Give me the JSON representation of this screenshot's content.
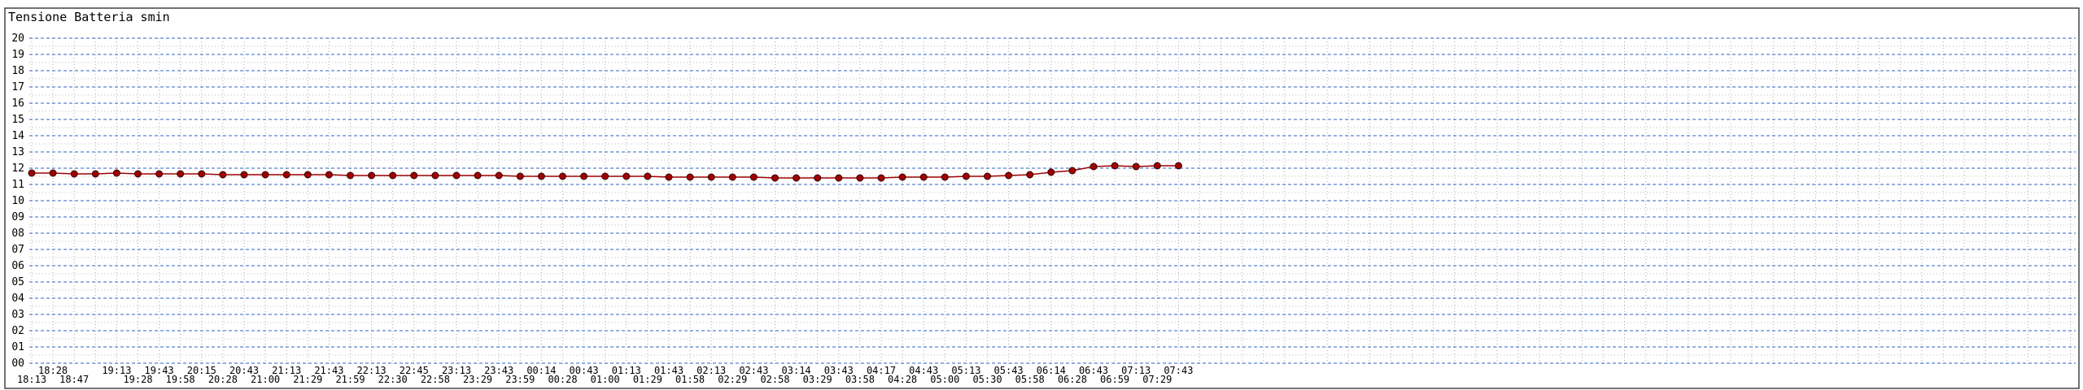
{
  "chart_data": {
    "type": "line",
    "title": "Tensione Batteria smin",
    "categories": [
      "18:13",
      "18:28",
      "18:47",
      null,
      "19:13",
      "19:28",
      "19:43",
      "19:58",
      "20:15",
      "20:28",
      "20:43",
      "21:00",
      "21:13",
      "21:29",
      "21:43",
      "21:59",
      "22:13",
      "22:30",
      "22:45",
      "22:58",
      "23:13",
      "23:29",
      "23:43",
      "23:59",
      "00:14",
      "00:28",
      "00:43",
      "01:00",
      "01:13",
      "01:29",
      "01:43",
      "01:58",
      "02:13",
      "02:29",
      "02:43",
      "02:58",
      "03:14",
      "03:29",
      "03:43",
      "03:58",
      "04:17",
      "04:28",
      "04:43",
      "05:00",
      "05:13",
      "05:30",
      "05:43",
      "05:58",
      "06:14",
      "06:28",
      "06:43",
      "06:59",
      "07:13",
      "07:29",
      "07:43"
    ],
    "values": [
      11.7,
      11.7,
      11.65,
      11.65,
      11.7,
      11.65,
      11.65,
      11.65,
      11.65,
      11.6,
      11.6,
      11.6,
      11.6,
      11.6,
      11.6,
      11.55,
      11.55,
      11.55,
      11.55,
      11.55,
      11.55,
      11.55,
      11.55,
      11.5,
      11.5,
      11.5,
      11.5,
      11.5,
      11.5,
      11.5,
      11.45,
      11.45,
      11.45,
      11.45,
      11.45,
      11.4,
      11.4,
      11.4,
      11.4,
      11.4,
      11.4,
      11.45,
      11.45,
      11.45,
      11.5,
      11.5,
      11.55,
      11.6,
      11.75,
      11.85,
      12.1,
      12.15,
      12.1,
      12.15,
      12.15
    ],
    "color": "#a00000",
    "ylim": [
      0,
      20
    ],
    "yticks": [
      {
        "value": 0,
        "label": "00"
      },
      {
        "value": 1,
        "label": "01"
      },
      {
        "value": 2,
        "label": "02"
      },
      {
        "value": 3,
        "label": "03"
      },
      {
        "value": 4,
        "label": "04"
      },
      {
        "value": 5,
        "label": "05"
      },
      {
        "value": 6,
        "label": "06"
      },
      {
        "value": 7,
        "label": "07"
      },
      {
        "value": 8,
        "label": "08"
      },
      {
        "value": 9,
        "label": "09"
      },
      10,
      11,
      12,
      13,
      14,
      15,
      16,
      17,
      18,
      19,
      20
    ],
    "grid": true
  }
}
